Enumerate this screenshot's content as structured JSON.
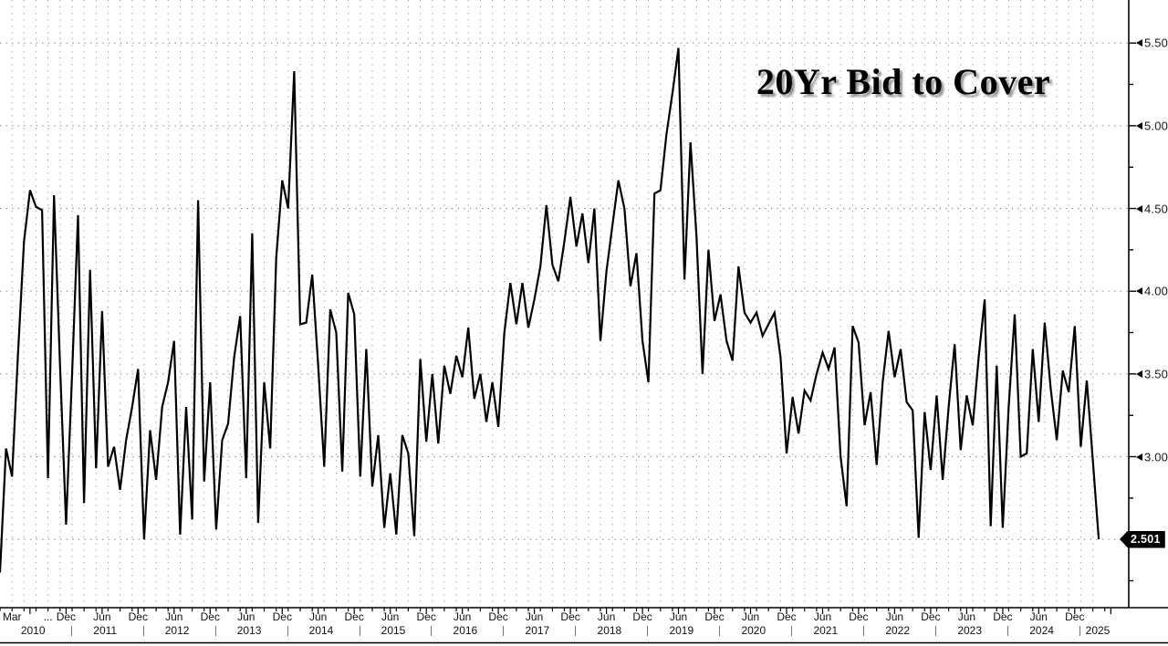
{
  "title": "20Yr Bid to Cover",
  "last_price": {
    "label": "2.501"
  },
  "y_axis": {
    "tick_labels": [
      "5.500",
      "5.000",
      "4.500",
      "4.000",
      "3.500",
      "3.000"
    ],
    "tick_values": [
      5.5,
      5.0,
      4.5,
      4.0,
      3.5,
      3.0
    ],
    "minor_step": 0.25
  },
  "x_axis": {
    "separator": "|",
    "month_labels": [
      {
        "m": 2,
        "label": "Mar"
      },
      {
        "m": 8,
        "label": "..."
      },
      {
        "m": 11,
        "label": "Dec"
      },
      {
        "m": 17,
        "label": "Jun"
      },
      {
        "m": 23,
        "label": "Dec"
      },
      {
        "m": 29,
        "label": "Jun"
      },
      {
        "m": 35,
        "label": "Dec"
      },
      {
        "m": 41,
        "label": "Jun"
      },
      {
        "m": 47,
        "label": "Dec"
      },
      {
        "m": 53,
        "label": "Jun"
      },
      {
        "m": 59,
        "label": "Dec"
      },
      {
        "m": 65,
        "label": "Jun"
      },
      {
        "m": 71,
        "label": "Dec"
      },
      {
        "m": 77,
        "label": "Jun"
      },
      {
        "m": 83,
        "label": "Dec"
      },
      {
        "m": 89,
        "label": "Jun"
      },
      {
        "m": 95,
        "label": "Dec"
      },
      {
        "m": 101,
        "label": "Jun"
      },
      {
        "m": 107,
        "label": "Dec"
      },
      {
        "m": 113,
        "label": "Jun"
      },
      {
        "m": 119,
        "label": "Dec"
      },
      {
        "m": 125,
        "label": "Jun"
      },
      {
        "m": 131,
        "label": "Dec"
      },
      {
        "m": 137,
        "label": "Jun"
      },
      {
        "m": 143,
        "label": "Dec"
      },
      {
        "m": 149,
        "label": "Jun"
      },
      {
        "m": 155,
        "label": "Dec"
      },
      {
        "m": 161,
        "label": "Jun"
      },
      {
        "m": 167,
        "label": "Dec"
      },
      {
        "m": 173,
        "label": "Jun"
      },
      {
        "m": 179,
        "label": "Dec"
      }
    ],
    "year_labels": [
      "2010",
      "2011",
      "2012",
      "2013",
      "2014",
      "2015",
      "2016",
      "2017",
      "2018",
      "2019",
      "2020",
      "2021",
      "2022",
      "2023",
      "2024",
      "2025"
    ]
  },
  "colors": {
    "line": "#000000",
    "grid_h": "#8f8f8f",
    "grid_v": "#a8a8a8",
    "axis": "#000000",
    "badge_bg": "#000000",
    "badge_text": "#ffffff",
    "label": "#1a1a1a",
    "background": "#ffffff"
  },
  "chart_data": {
    "type": "line",
    "title": "20Yr Bid to Cover",
    "series_name": "20Yr Bid to Cover",
    "x_unit": "month",
    "x_range": "Jan 2010 - Apr 2025",
    "ylim": [
      2.09,
      5.76
    ],
    "y_gridlines": [
      2.5,
      3.0,
      3.5,
      4.0,
      4.5,
      5.0,
      5.5
    ],
    "grid": true,
    "legend": "none",
    "last_value": 2.501,
    "max_value": 5.47,
    "values": [
      2.3,
      3.05,
      2.88,
      3.62,
      4.3,
      4.61,
      4.51,
      4.49,
      2.87,
      4.58,
      3.55,
      2.59,
      3.5,
      4.46,
      2.72,
      4.13,
      2.93,
      3.88,
      2.94,
      3.06,
      2.8,
      3.1,
      3.3,
      3.53,
      2.5,
      3.16,
      2.86,
      3.3,
      3.45,
      3.7,
      2.53,
      3.3,
      2.62,
      4.55,
      2.85,
      3.45,
      2.56,
      3.1,
      3.2,
      3.6,
      3.85,
      2.87,
      4.35,
      2.6,
      3.45,
      3.05,
      4.2,
      4.67,
      4.5,
      5.33,
      3.8,
      3.81,
      4.1,
      3.55,
      2.94,
      3.89,
      3.75,
      2.91,
      3.99,
      3.86,
      2.88,
      3.65,
      2.82,
      3.13,
      2.57,
      2.9,
      2.53,
      3.13,
      3.02,
      2.52,
      3.59,
      3.09,
      3.5,
      3.08,
      3.55,
      3.38,
      3.61,
      3.48,
      3.78,
      3.35,
      3.5,
      3.21,
      3.45,
      3.18,
      3.75,
      4.05,
      3.8,
      4.05,
      3.78,
      3.95,
      4.15,
      4.52,
      4.16,
      4.06,
      4.3,
      4.57,
      4.27,
      4.47,
      4.17,
      4.5,
      3.7,
      4.12,
      4.4,
      4.67,
      4.5,
      4.03,
      4.23,
      3.7,
      3.45,
      4.59,
      4.61,
      4.95,
      5.2,
      5.47,
      4.07,
      4.9,
      4.33,
      3.5,
      4.25,
      3.82,
      3.98,
      3.7,
      3.58,
      4.15,
      3.87,
      3.81,
      3.87,
      3.73,
      3.8,
      3.87,
      3.6,
      3.02,
      3.36,
      3.14,
      3.4,
      3.34,
      3.5,
      3.63,
      3.53,
      3.66,
      3.0,
      2.7,
      3.79,
      3.69,
      3.19,
      3.39,
      2.95,
      3.45,
      3.76,
      3.48,
      3.65,
      3.33,
      3.28,
      2.51,
      3.27,
      2.92,
      3.37,
      2.86,
      3.3,
      3.68,
      3.04,
      3.37,
      3.19,
      3.6,
      3.95,
      2.58,
      3.55,
      2.57,
      3.3,
      3.86,
      3.0,
      3.02,
      3.65,
      3.21,
      3.81,
      3.41,
      3.1,
      3.52,
      3.39,
      3.79,
      3.06,
      3.46,
      2.98,
      2.501
    ]
  }
}
